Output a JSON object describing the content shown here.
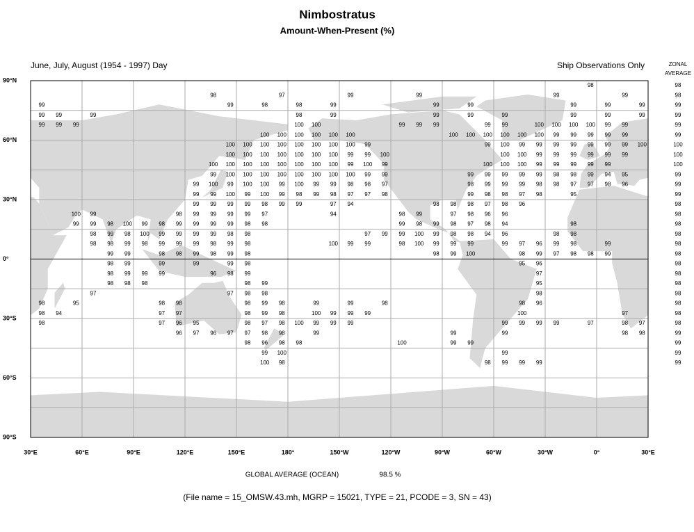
{
  "header": {
    "title": "Nimbostratus",
    "subtitle": "Amount-When-Present (%)"
  },
  "map": {
    "season_label": "June, July, August (1954 - 1997) Day",
    "source_label": "Ship Observations Only",
    "lon_labels": [
      "30°E",
      "60°E",
      "90°E",
      "120°E",
      "150°E",
      "180°",
      "150°W",
      "120°W",
      "90°W",
      "60°W",
      "30°W",
      "0°",
      "30°E"
    ],
    "lat_labels": [
      "90°N",
      "60°N",
      "30°N",
      "0°",
      "30°S",
      "60°S",
      "90°S"
    ],
    "cells": [
      [
        null,
        null,
        null,
        null,
        null,
        null,
        null,
        null,
        null,
        null,
        null,
        null,
        null,
        null,
        null,
        null,
        null,
        null,
        null,
        null,
        null,
        null,
        null,
        null,
        null,
        null,
        null,
        null,
        null,
        null,
        null,
        null,
        98,
        null,
        null,
        null
      ],
      [
        null,
        null,
        null,
        null,
        null,
        null,
        null,
        null,
        null,
        null,
        98,
        null,
        null,
        null,
        97,
        null,
        null,
        null,
        99,
        null,
        null,
        null,
        99,
        null,
        null,
        null,
        null,
        null,
        null,
        null,
        99,
        null,
        null,
        null,
        99,
        null
      ],
      [
        99,
        null,
        null,
        null,
        null,
        null,
        null,
        null,
        null,
        null,
        null,
        99,
        null,
        98,
        null,
        98,
        null,
        99,
        null,
        null,
        null,
        null,
        null,
        99,
        null,
        99,
        null,
        null,
        null,
        null,
        null,
        99,
        null,
        99,
        null,
        99
      ],
      [
        99,
        99,
        null,
        99,
        null,
        null,
        null,
        null,
        null,
        null,
        null,
        null,
        null,
        null,
        null,
        98,
        null,
        99,
        null,
        null,
        null,
        null,
        null,
        99,
        null,
        99,
        null,
        99,
        null,
        null,
        null,
        99,
        null,
        99,
        null,
        99
      ],
      [
        99,
        99,
        99,
        null,
        null,
        null,
        null,
        null,
        null,
        null,
        null,
        null,
        null,
        null,
        null,
        100,
        100,
        null,
        null,
        null,
        null,
        99,
        99,
        99,
        null,
        null,
        99,
        99,
        null,
        100,
        100,
        100,
        100,
        99,
        99,
        null
      ],
      [
        null,
        null,
        null,
        null,
        null,
        null,
        null,
        null,
        null,
        null,
        null,
        null,
        null,
        100,
        100,
        100,
        100,
        100,
        100,
        null,
        null,
        null,
        null,
        null,
        100,
        100,
        100,
        100,
        100,
        100,
        99,
        99,
        99,
        99,
        99,
        null
      ],
      [
        null,
        null,
        null,
        null,
        null,
        null,
        null,
        null,
        null,
        null,
        null,
        100,
        100,
        100,
        100,
        100,
        100,
        100,
        100,
        99,
        null,
        null,
        null,
        null,
        null,
        null,
        99,
        100,
        99,
        99,
        99,
        99,
        99,
        99,
        99,
        100
      ],
      [
        null,
        null,
        null,
        null,
        null,
        null,
        null,
        null,
        null,
        null,
        null,
        100,
        100,
        100,
        100,
        100,
        100,
        100,
        99,
        99,
        100,
        null,
        null,
        null,
        null,
        null,
        null,
        100,
        100,
        99,
        99,
        99,
        99,
        99,
        99,
        null
      ],
      [
        null,
        null,
        null,
        null,
        null,
        null,
        null,
        null,
        null,
        null,
        100,
        100,
        100,
        100,
        100,
        100,
        100,
        100,
        99,
        100,
        99,
        null,
        null,
        null,
        null,
        null,
        100,
        100,
        100,
        99,
        99,
        99,
        99,
        99,
        null,
        null
      ],
      [
        null,
        null,
        null,
        null,
        null,
        null,
        null,
        null,
        null,
        null,
        99,
        100,
        100,
        100,
        100,
        100,
        100,
        100,
        100,
        99,
        99,
        null,
        null,
        null,
        null,
        99,
        99,
        99,
        99,
        99,
        98,
        98,
        99,
        94,
        95,
        null
      ],
      [
        null,
        null,
        null,
        null,
        null,
        null,
        null,
        null,
        null,
        99,
        100,
        99,
        100,
        100,
        99,
        100,
        99,
        99,
        98,
        98,
        97,
        null,
        null,
        null,
        null,
        98,
        99,
        99,
        99,
        98,
        98,
        97,
        97,
        98,
        96,
        null
      ],
      [
        null,
        null,
        null,
        null,
        null,
        null,
        null,
        null,
        null,
        99,
        99,
        100,
        99,
        100,
        99,
        98,
        99,
        98,
        97,
        97,
        98,
        null,
        null,
        null,
        null,
        99,
        98,
        98,
        97,
        98,
        null,
        95,
        null,
        null,
        null,
        null
      ],
      [
        null,
        null,
        null,
        null,
        null,
        null,
        null,
        null,
        null,
        99,
        99,
        99,
        99,
        98,
        99,
        99,
        null,
        97,
        94,
        null,
        null,
        null,
        null,
        98,
        98,
        98,
        97,
        98,
        96,
        null,
        null,
        null,
        null,
        null,
        null,
        null
      ],
      [
        null,
        null,
        100,
        99,
        null,
        null,
        null,
        null,
        98,
        99,
        99,
        99,
        99,
        97,
        null,
        null,
        null,
        94,
        null,
        null,
        null,
        98,
        99,
        null,
        97,
        98,
        96,
        96,
        null,
        null,
        null,
        null,
        null,
        null,
        null,
        null
      ],
      [
        null,
        null,
        99,
        99,
        98,
        100,
        99,
        98,
        99,
        99,
        99,
        99,
        98,
        98,
        null,
        null,
        null,
        null,
        null,
        null,
        null,
        99,
        98,
        99,
        98,
        97,
        98,
        94,
        null,
        null,
        null,
        98,
        null,
        null,
        null,
        null
      ],
      [
        null,
        null,
        null,
        98,
        99,
        98,
        100,
        99,
        99,
        99,
        99,
        98,
        98,
        null,
        null,
        null,
        null,
        null,
        null,
        97,
        99,
        99,
        100,
        99,
        98,
        98,
        94,
        96,
        null,
        null,
        98,
        98,
        null,
        null,
        null,
        null
      ],
      [
        null,
        null,
        null,
        98,
        98,
        99,
        98,
        99,
        99,
        99,
        98,
        99,
        98,
        null,
        null,
        null,
        null,
        100,
        99,
        99,
        null,
        98,
        100,
        99,
        99,
        99,
        null,
        99,
        97,
        96,
        99,
        98,
        null,
        99,
        null,
        null
      ],
      [
        null,
        null,
        null,
        null,
        99,
        99,
        null,
        98,
        98,
        99,
        98,
        99,
        98,
        null,
        null,
        null,
        null,
        null,
        null,
        null,
        null,
        null,
        null,
        98,
        99,
        100,
        null,
        null,
        98,
        99,
        97,
        98,
        98,
        99,
        null,
        null
      ],
      [
        null,
        null,
        null,
        null,
        98,
        99,
        null,
        99,
        null,
        99,
        null,
        99,
        98,
        null,
        null,
        null,
        null,
        null,
        null,
        null,
        null,
        null,
        null,
        null,
        null,
        null,
        null,
        null,
        95,
        96,
        null,
        null,
        null,
        null,
        null,
        null
      ],
      [
        null,
        null,
        null,
        null,
        98,
        99,
        99,
        99,
        null,
        null,
        96,
        98,
        99,
        null,
        null,
        null,
        null,
        null,
        null,
        null,
        null,
        null,
        null,
        null,
        null,
        null,
        null,
        null,
        null,
        97,
        null,
        null,
        null,
        null,
        null,
        null
      ],
      [
        null,
        null,
        null,
        null,
        98,
        98,
        98,
        null,
        null,
        null,
        null,
        null,
        98,
        99,
        null,
        null,
        null,
        null,
        null,
        null,
        null,
        null,
        null,
        null,
        null,
        null,
        null,
        null,
        null,
        95,
        null,
        null,
        null,
        null,
        null,
        null
      ],
      [
        null,
        null,
        null,
        97,
        null,
        null,
        null,
        null,
        null,
        null,
        null,
        97,
        98,
        98,
        null,
        null,
        null,
        null,
        null,
        null,
        null,
        null,
        null,
        null,
        null,
        null,
        null,
        null,
        null,
        98,
        null,
        null,
        null,
        null,
        null,
        null
      ],
      [
        98,
        null,
        95,
        null,
        null,
        null,
        null,
        98,
        98,
        null,
        null,
        null,
        98,
        99,
        98,
        null,
        99,
        null,
        99,
        null,
        98,
        null,
        null,
        null,
        null,
        null,
        null,
        null,
        98,
        96,
        null,
        null,
        null,
        null,
        null,
        null
      ],
      [
        98,
        94,
        null,
        null,
        null,
        null,
        null,
        97,
        97,
        null,
        null,
        null,
        98,
        99,
        98,
        null,
        100,
        99,
        99,
        99,
        null,
        null,
        null,
        null,
        null,
        null,
        null,
        null,
        100,
        null,
        null,
        null,
        null,
        null,
        97,
        null
      ],
      [
        98,
        null,
        null,
        null,
        null,
        null,
        null,
        97,
        96,
        95,
        null,
        null,
        98,
        97,
        98,
        100,
        99,
        99,
        99,
        null,
        null,
        null,
        null,
        null,
        null,
        null,
        null,
        99,
        99,
        99,
        99,
        null,
        97,
        null,
        98,
        97
      ],
      [
        null,
        null,
        null,
        null,
        null,
        null,
        null,
        null,
        96,
        97,
        96,
        97,
        97,
        98,
        98,
        null,
        99,
        null,
        null,
        null,
        null,
        null,
        null,
        null,
        99,
        null,
        null,
        99,
        null,
        null,
        null,
        null,
        null,
        null,
        98,
        98
      ],
      [
        null,
        null,
        null,
        null,
        null,
        null,
        null,
        null,
        null,
        null,
        null,
        null,
        98,
        96,
        98,
        98,
        null,
        null,
        null,
        null,
        null,
        100,
        null,
        null,
        99,
        99,
        null,
        null,
        null,
        null,
        null,
        null,
        null,
        null,
        null,
        null
      ],
      [
        null,
        null,
        null,
        null,
        null,
        null,
        null,
        null,
        null,
        null,
        null,
        null,
        null,
        99,
        100,
        null,
        null,
        null,
        null,
        null,
        null,
        null,
        null,
        null,
        null,
        null,
        null,
        99,
        null,
        null,
        null,
        null,
        null,
        null,
        null,
        null
      ],
      [
        null,
        null,
        null,
        null,
        null,
        null,
        null,
        null,
        null,
        null,
        null,
        null,
        null,
        100,
        98,
        null,
        null,
        null,
        null,
        null,
        null,
        null,
        null,
        null,
        null,
        null,
        98,
        99,
        99,
        99,
        null,
        null,
        null,
        null,
        null,
        null
      ]
    ]
  },
  "zonal_average": {
    "heading": [
      "ZONAL",
      "AVERAGE"
    ],
    "values": [
      98,
      98,
      99,
      99,
      99,
      99,
      100,
      100,
      100,
      99,
      99,
      99,
      98,
      98,
      98,
      98,
      98,
      98,
      98,
      98,
      98,
      98,
      98,
      98,
      98,
      99,
      99,
      99,
      99
    ]
  },
  "footer": {
    "global_label": "GLOBAL AVERAGE (OCEAN)",
    "global_value": "98.5 %",
    "file_info": "(File name = 15_OMSW.43.mh, MGRP = 15021, TYPE = 21, PCODE = 3, SN = 43)"
  }
}
